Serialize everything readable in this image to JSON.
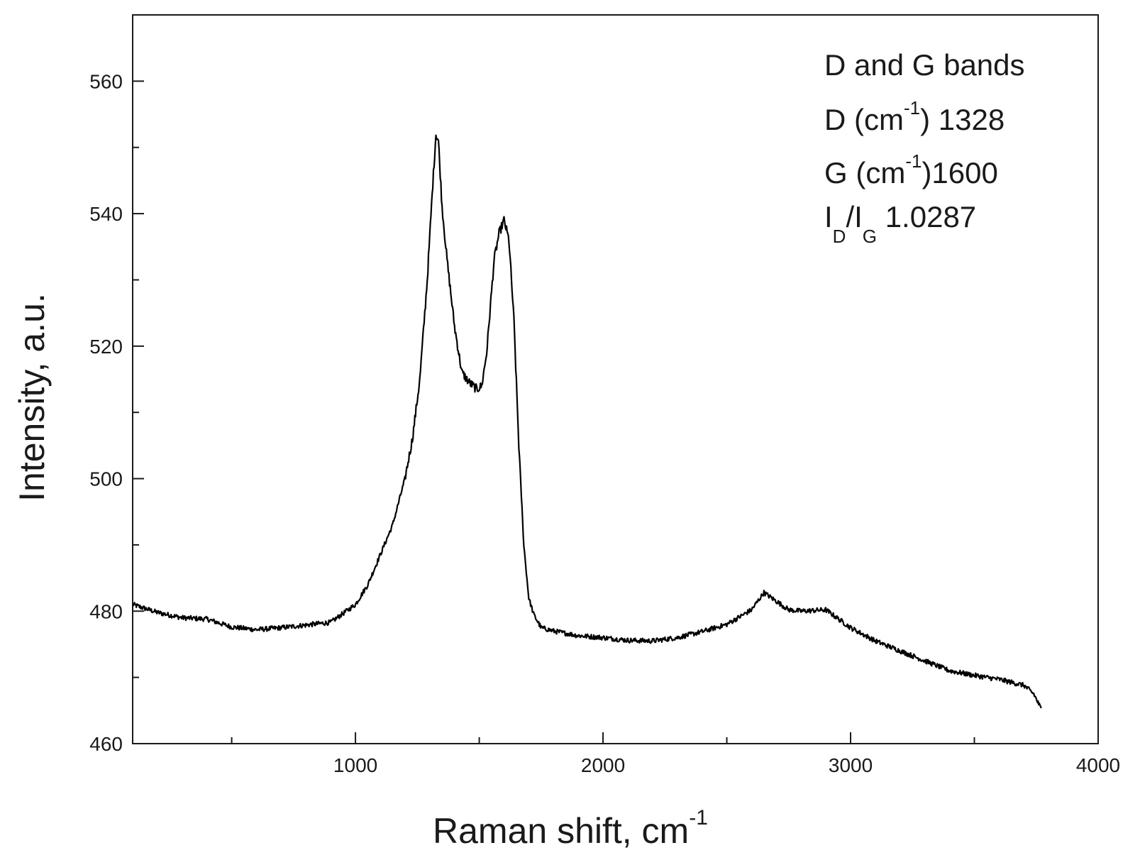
{
  "chart_data": {
    "type": "line",
    "title": "",
    "xlabel": "Raman shift, cm",
    "xlabel_sup": "-1",
    "ylabel": "Intensity, a.u.",
    "xlim": [
      100,
      4000
    ],
    "ylim": [
      460,
      570
    ],
    "x_ticks": [
      1000,
      2000,
      3000,
      4000
    ],
    "x_tick_labels": [
      "1000",
      "2000",
      "3000",
      "4000"
    ],
    "x_minor_ticks": [
      500,
      1500,
      2500,
      3500
    ],
    "y_ticks": [
      460,
      480,
      500,
      520,
      540,
      560
    ],
    "y_tick_labels": [
      "460",
      "480",
      "500",
      "520",
      "540",
      "560"
    ],
    "y_minor_ticks": [
      470,
      490,
      510,
      530,
      550
    ],
    "grid": false,
    "legend": "none",
    "line_color": "#000000",
    "annotations": {
      "line1": "D and G bands",
      "line2_prefix": "D (cm",
      "line2_sup": "-1",
      "line2_suffix": ") 1328",
      "line3_prefix": "G (cm",
      "line3_sup": "-1",
      "line3_suffix": ")1600",
      "line4_i1": "I",
      "line4_sub1": "D",
      "line4_slash": "/I",
      "line4_sub2": "G",
      "line4_value": " 1.0287"
    },
    "series": [
      {
        "anchors": [
          [
            100,
            481
          ],
          [
            200,
            479.8
          ],
          [
            300,
            479
          ],
          [
            400,
            478.8
          ],
          [
            500,
            477.6
          ],
          [
            600,
            477.2
          ],
          [
            700,
            477.5
          ],
          [
            800,
            477.9
          ],
          [
            900,
            478.3
          ],
          [
            1000,
            481
          ],
          [
            1050,
            484
          ],
          [
            1100,
            488.5
          ],
          [
            1150,
            493
          ],
          [
            1200,
            500
          ],
          [
            1230,
            506
          ],
          [
            1260,
            515
          ],
          [
            1290,
            530
          ],
          [
            1310,
            543
          ],
          [
            1325,
            552
          ],
          [
            1335,
            551
          ],
          [
            1350,
            541
          ],
          [
            1370,
            533
          ],
          [
            1400,
            523
          ],
          [
            1430,
            516
          ],
          [
            1460,
            514.5
          ],
          [
            1490,
            513.5
          ],
          [
            1510,
            514
          ],
          [
            1530,
            519
          ],
          [
            1560,
            533
          ],
          [
            1580,
            537
          ],
          [
            1600,
            539
          ],
          [
            1620,
            536
          ],
          [
            1640,
            524
          ],
          [
            1660,
            505
          ],
          [
            1680,
            490
          ],
          [
            1700,
            482
          ],
          [
            1720,
            479.5
          ],
          [
            1750,
            477.5
          ],
          [
            1800,
            477
          ],
          [
            1900,
            476.3
          ],
          [
            2000,
            476
          ],
          [
            2100,
            475.6
          ],
          [
            2200,
            475.5
          ],
          [
            2300,
            476
          ],
          [
            2400,
            476.9
          ],
          [
            2500,
            478
          ],
          [
            2600,
            480.2
          ],
          [
            2650,
            482.8
          ],
          [
            2700,
            481.5
          ],
          [
            2750,
            480.2
          ],
          [
            2800,
            480
          ],
          [
            2900,
            480.2
          ],
          [
            3000,
            477.5
          ],
          [
            3100,
            475.5
          ],
          [
            3200,
            474
          ],
          [
            3300,
            472.5
          ],
          [
            3400,
            471
          ],
          [
            3500,
            470.3
          ],
          [
            3600,
            469.7
          ],
          [
            3700,
            468.8
          ],
          [
            3740,
            467.5
          ],
          [
            3770,
            465.2
          ]
        ]
      }
    ]
  }
}
